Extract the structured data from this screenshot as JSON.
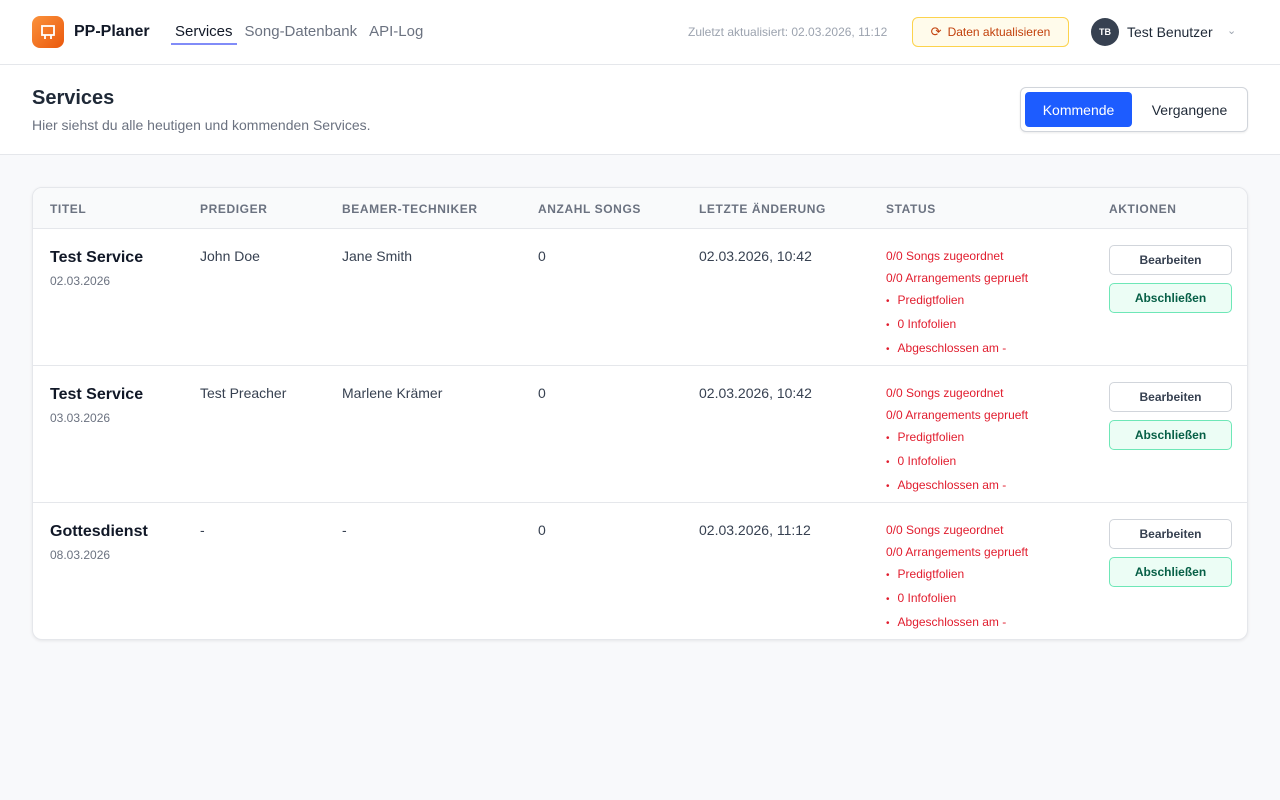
{
  "app": {
    "name": "PP-Planer"
  },
  "nav": [
    {
      "label": "Services",
      "active": true
    },
    {
      "label": "Song-Datenbank"
    },
    {
      "label": "API-Log"
    }
  ],
  "header": {
    "updated": "Zuletzt aktualisiert: 02.03.2026, 11:12",
    "refresh_label": "Daten aktualisieren",
    "user_initials": "TB",
    "user_name": "Test Benutzer"
  },
  "page": {
    "title": "Services",
    "subtitle": "Hier siehst du alle heutigen und kommenden Services.",
    "toggle": [
      "Kommende",
      "Vergangene"
    ]
  },
  "table": {
    "columns": [
      "TITEL",
      "PREDIGER",
      "BEAMER-TECHNIKER",
      "ANZAHL SONGS",
      "LETZTE ÄNDERUNG",
      "STATUS",
      "AKTIONEN"
    ],
    "rows": [
      {
        "title": "Test Service",
        "date": "02.03.2026",
        "preacher": "John Doe",
        "tech": "Jane Smith",
        "songs": "0",
        "changed": "02.03.2026, 10:42",
        "status": [
          "0/0 Songs zugeordnet",
          "0/0 Arrangements geprueft",
          "Predigtfolien",
          "0 Infofolien",
          "Abgeschlossen am -"
        ]
      },
      {
        "title": "Test Service",
        "date": "03.03.2026",
        "preacher": "Test Preacher",
        "tech": "Marlene Krämer",
        "songs": "0",
        "changed": "02.03.2026, 10:42",
        "status": [
          "0/0 Songs zugeordnet",
          "0/0 Arrangements geprueft",
          "Predigtfolien",
          "0 Infofolien",
          "Abgeschlossen am -"
        ]
      },
      {
        "title": "Gottesdienst",
        "date": "08.03.2026",
        "preacher": "-",
        "tech": "-",
        "songs": "0",
        "changed": "02.03.2026, 11:12",
        "status": [
          "0/0 Songs zugeordnet",
          "0/0 Arrangements geprueft",
          "Predigtfolien",
          "0 Infofolien",
          "Abgeschlossen am -"
        ]
      }
    ],
    "edit_label": "Bearbeiten",
    "finish_label": "Abschließen"
  },
  "colors": {
    "accent": "#1d5cff",
    "status_error": "#e11d2e",
    "brand": "#f97316"
  }
}
